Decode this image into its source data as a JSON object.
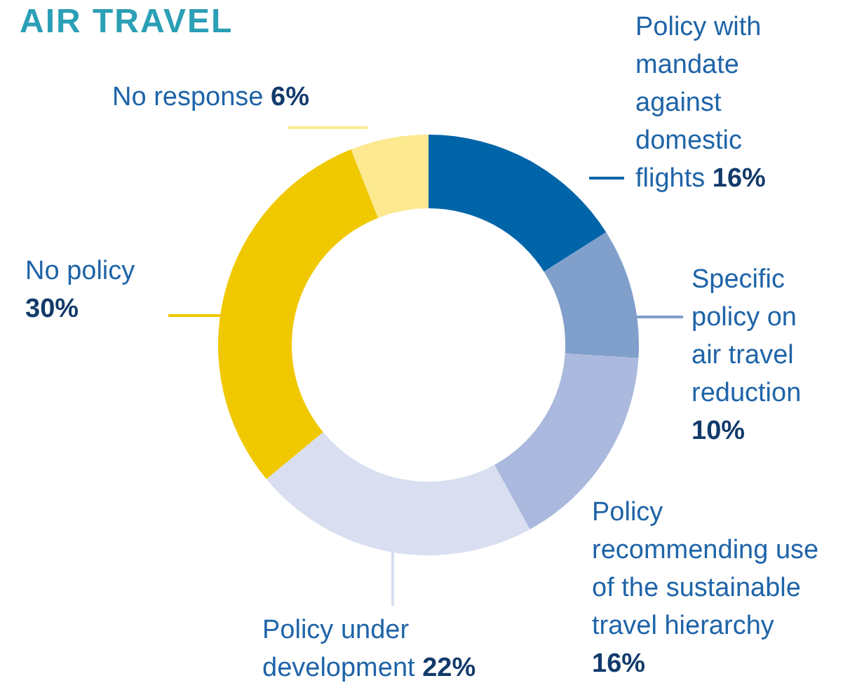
{
  "chart_data": {
    "type": "donut",
    "title": "AIR TRAVEL",
    "categories": [
      "Policy with mandate against domestic flights",
      "Specific policy on air travel reduction",
      "Policy recommending use of the sustainable travel hierarchy",
      "Policy under development",
      "No policy",
      "No response"
    ],
    "values": [
      16,
      10,
      16,
      22,
      30,
      6
    ],
    "colors": [
      "#0065a8",
      "#819fcb",
      "#aab9dd",
      "#d9dff0",
      "#f0c800",
      "#fce990"
    ],
    "value_labels": [
      "16%",
      "10%",
      "16%",
      "22%",
      "30%",
      "6%"
    ]
  }
}
